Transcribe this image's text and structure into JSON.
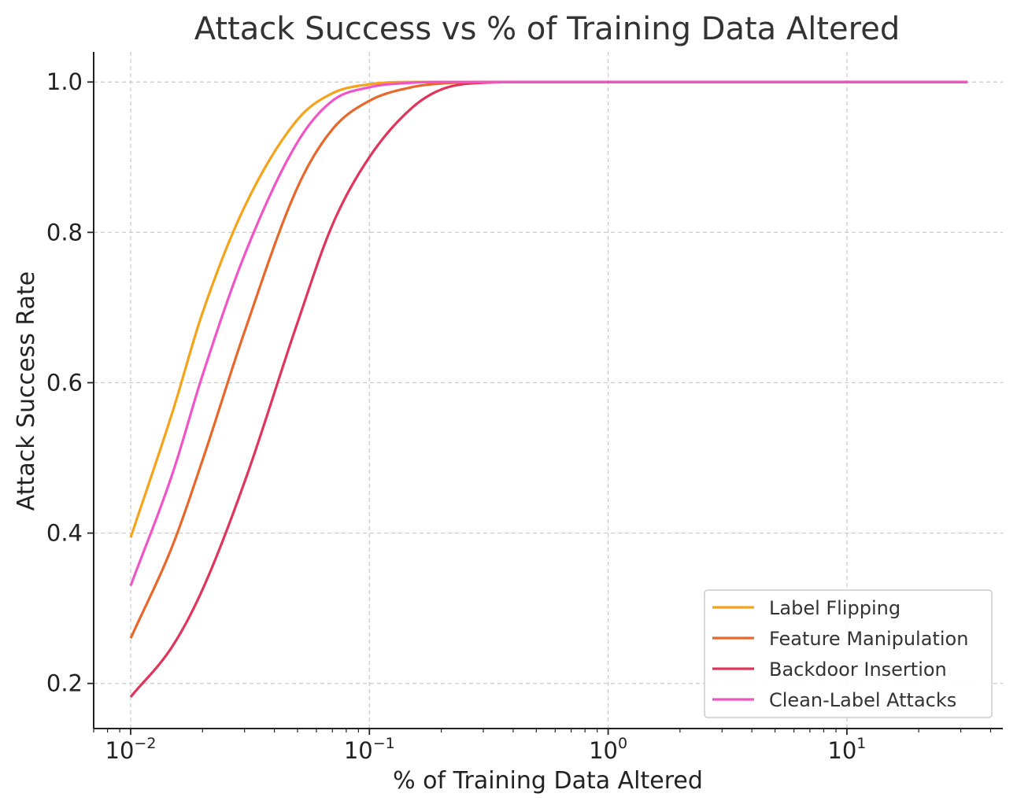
{
  "chart_data": {
    "type": "line",
    "title": "Attack Success vs % of Training Data Altered",
    "xlabel": "% of Training Data Altered",
    "ylabel": "Attack Success Rate",
    "x_scale": "log",
    "xlim": [
      0.007,
      45
    ],
    "ylim": [
      0.14,
      1.04
    ],
    "x_ticks": [
      {
        "value": 0.01,
        "base": "10",
        "exp": "−2"
      },
      {
        "value": 0.1,
        "base": "10",
        "exp": "−1"
      },
      {
        "value": 1,
        "base": "10",
        "exp": "0"
      },
      {
        "value": 10,
        "base": "10",
        "exp": "1"
      }
    ],
    "y_ticks": [
      {
        "value": 0.2,
        "label": "0.2"
      },
      {
        "value": 0.4,
        "label": "0.4"
      },
      {
        "value": 0.6,
        "label": "0.6"
      },
      {
        "value": 0.8,
        "label": "0.8"
      },
      {
        "value": 1.0,
        "label": "1.0"
      }
    ],
    "grid": true,
    "legend_position": "bottom-right",
    "x": [
      0.01,
      0.015,
      0.02,
      0.03,
      0.05,
      0.07,
      0.1,
      0.15,
      0.2,
      0.3,
      0.5,
      1,
      2,
      5,
      10,
      32
    ],
    "series": [
      {
        "name": "Label Flipping",
        "color": "#f5a31a",
        "values": [
          0.394,
          0.562,
          0.693,
          0.834,
          0.95,
          0.985,
          0.997,
          1.0,
          1.0,
          1.0,
          1.0,
          1.0,
          1.0,
          1.0,
          1.0,
          1.0
        ]
      },
      {
        "name": "Feature Manipulation",
        "color": "#e8672a",
        "values": [
          0.26,
          0.384,
          0.497,
          0.668,
          0.86,
          0.937,
          0.975,
          0.993,
          0.998,
          1.0,
          1.0,
          1.0,
          1.0,
          1.0,
          1.0,
          1.0
        ]
      },
      {
        "name": "Backdoor Insertion",
        "color": "#e0345a",
        "values": [
          0.182,
          0.25,
          0.325,
          0.468,
          0.68,
          0.81,
          0.9,
          0.965,
          0.99,
          0.999,
          1.0,
          1.0,
          1.0,
          1.0,
          1.0,
          1.0
        ]
      },
      {
        "name": "Clean-Label Attacks",
        "color": "#f055c8",
        "values": [
          0.33,
          0.48,
          0.61,
          0.77,
          0.92,
          0.975,
          0.993,
          0.999,
          1.0,
          1.0,
          1.0,
          1.0,
          1.0,
          1.0,
          1.0,
          1.0
        ]
      }
    ]
  }
}
